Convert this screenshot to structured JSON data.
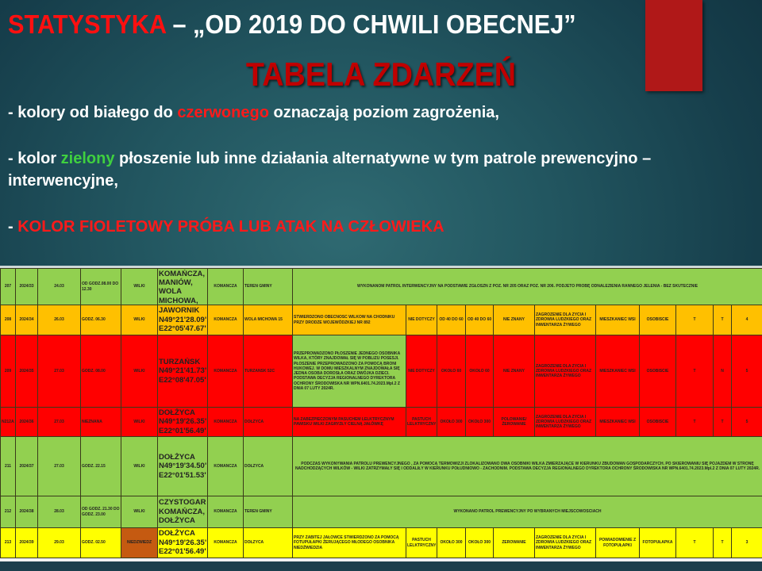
{
  "slide": {
    "title_red": "STATYSTYKA",
    "title_rest": " – „OD 2019 DO CHWILI OBECNEJ”",
    "subtitle": "TABELA ZDARZEŃ",
    "bullets": [
      {
        "pre": "- kolory od białego do ",
        "hl": "czerwonego",
        "post": " oznaczają poziom zagrożenia,"
      },
      {
        "pre": "- kolor ",
        "hl": "zielony",
        "post": " płoszenie lub inne działania alternatywne w tym patrole prewencyjno – interwencyjne,"
      },
      {
        "pre": "- ",
        "hl": "KOLOR FIOLETOWY PRÓBA LUB ATAK NA CZŁOWIEKA",
        "post": ""
      }
    ]
  },
  "colors": {
    "green": "#92d050",
    "orange": "#ffc000",
    "red": "#ff0000",
    "yellow": "#ffff00",
    "brown": "#c55a11",
    "title_red": "#c00000"
  },
  "table": {
    "rows": [
      {
        "bg": "#92d050",
        "span_desc": true,
        "cells": [
          "207",
          "2024/33",
          "24.03",
          "OD GODZ.08.00 DO 12.30",
          "WILKI",
          "KOMAŃCZA, MANIÓW, WOLA MICHOWA,",
          "KOMAŃCZA",
          "TEREN GMINY",
          "WYKONANOM PATROL INTERWENCYJNY NA PODSTAWIE ZGŁOSZŃ Z POZ. NR 205 ORAZ POZ. NR 206. PODJETO PRÓBĘ ODNALEZIENIA RANNEGO JELENIA - BEZ SKUTECZNIE"
        ]
      },
      {
        "bg": "#ffc000",
        "span_desc": false,
        "cells": [
          "208",
          "2024/34",
          "26.03",
          "GODZ. 06.30",
          "WILKI",
          "JAWORNIK N49°21'28.09\" E22°05'47.67\"",
          "KOMAŃCZA",
          "WOLA MICHOWA 15",
          "STWIERDZONO OBECNOŚĆ WILKÓW NA CHODNIKU PRZY DRODZE WOJEWÓDZKIEJ NR 892",
          "NIE DOTYCZY",
          "OD 40 DO 60",
          "OD 40 DO 60",
          "NIE ZNANY",
          "ZAGROŻENIE DLA ŻYCIA I ZDROWIA LUDZKIEGO ORAZ INWENTARZA ŻYWEGO",
          "MIESZKANIEC WSI",
          "OSOBIŚCIE",
          "T",
          "T",
          "4"
        ]
      },
      {
        "bg": "#ff0000",
        "span_desc": false,
        "desc_bg": "#92d050",
        "cells": [
          "209",
          "2024/35",
          "27.03",
          "GODZ. 08.00",
          "WILKI",
          "TURZAŃSK N49°21'41.73\" E22°08'47.05\"",
          "KOMAŃCZA",
          "TURZAŃSK 52C",
          "PRZEPROWADZONO PŁOSZENIE JEDNEGO OSOBNIKA WILKA, KTÓRY ZNAJDOWAŁ SIĘ W POBLIZU POSESJI. PŁOSZENIE PRZEPROWADZONO ZA POMOCĄ BRONI HUKOWEJ. W DOMU MIESZKALNYM ZNAJDOWAŁA SIĘ JEDNA OSOBA DOROSŁA ORAZ DWÓJKA DZIECI. PODSTAWA DECYZJA REGIONALNEGO DYREKTORA OCHRONY ŚRODOWISKA NR WPN.6401.74.2023.Mpl.2 Z DNIA 07 LUTY 2024R.",
          "NIE DOTYCZY",
          "OKOŁO 60",
          "OKOŁO 60",
          "NIE ZNANY",
          "ZAGROŻENIE DLA ŻYCIA I ZDROWIA LUDZKIEGO ORAZ INWENTARZA ŻYWEGO",
          "MIESZKANIEC WSI",
          "OSOBIŚCIE",
          "T",
          "N",
          "5"
        ]
      },
      {
        "bg": "#ff0000",
        "span_desc": false,
        "cells": [
          "N212A2",
          "2024/36",
          "27.03",
          "NIEZNANA",
          "WILKI",
          "DOŁŻYCA N49°19'26.35\" E22°01'56.49\"",
          "KOMAŃCZA",
          "DOŁŻYCA",
          "NA ZABEZPIECZONYM PASUCHEM LELKTRYCZNYM PAWISKU WILKI ZAGRYZŁY CIELNĄ JAŁÓWKĘ",
          "PASTUCH LELKTRYCZNY",
          "OKOŁO 300",
          "OKOŁO 300",
          "POLOWANIE/ŻEROWANIE",
          "ZAGROŻENIE DLA ŻYCIA I ZDROWIA LUDZKIEGO ORAZ INWENTARZA ŻYWEGO",
          "MIESZKANIEC WSI",
          "OSOBIŚCIE",
          "T",
          "T",
          "5"
        ]
      },
      {
        "bg": "#92d050",
        "span_desc": true,
        "cells": [
          "211",
          "2024/37",
          "27.03",
          "GODZ. 22.15",
          "WILKI",
          "DOŁŻYCA N49°19'34.50\" E22°01'51.53\"",
          "KOMAŃCZA",
          "DOŁŻYCA",
          "PODCZAS WYKONYWANIA PATROLU PREWENCYJNEGO , ZA POMOCĄ TERMOWIZJI ZLOKALIZOWANO DWA OSOBNIKI WILKA ZMIERZAJĄCE W KIERUNKU ZBUDOWAŃ GOSPODARCZYCH. PO SKIEROWANIU SIĘ POJAZDEM W STRONĘ NADCHODZĄCYCH WILKÓW - WILKI ZATRZYMAŁY SIĘ I ODDALIŁY W KIERUNKU POŁUDNIOWO - ZACHODNIM. PODSTAWA DECYZJA REGIONALNEGO DYREKTORA OCHRONY ŚRODOWISKA NR WPN.6401.74.2023.Mpl.2 Z DNIA 07 LUTY 2024R."
        ]
      },
      {
        "bg": "#92d050",
        "span_desc": true,
        "cells": [
          "212",
          "2024/38",
          "28.03",
          "OD GODZ. 21.30 DO GODZ. 23.00",
          "WILKI",
          "CZYSTOGARB, KOMAŃCZA, DOŁŻYCA",
          "KOMAŃCZA",
          "TEREN GMINY",
          "WYKONANO PATROL PREWENCYJNY PO WYBRANYCH MIEJSCOWOŚCIACH"
        ]
      },
      {
        "bg": "#ffff00",
        "span_desc": false,
        "species_bg": "#c55a11",
        "cells": [
          "213",
          "2024/39",
          "29.03",
          "GODZ. 02.50",
          "NIEDŹWIEDŹ",
          "DOŁŻYCA N49°19'26.35\" E22°01'56.49\"",
          "KOMAŃCZA",
          "DOŁŻYCA",
          "PRZY ZABITEJ JAŁÓWCE STWIERDZONO ZA POMOCĄ FOTUPUŁAPKI ŻERUJĄCEGO MŁODEGO OSOBNIKA NIEDŹWIEDZIA",
          "PASTUCH LELKTRYCZNY",
          "OKOŁO 300",
          "OKOŁO 300",
          "ŻEROWANIE",
          "ZAGROŻENIE DLA ŻYCIA I ZDROWIA LUDZKIEGO ORAZ INWENTARZA ŻYWEGO",
          "POWIADOMIENIE Z FOTOPUŁAPKI",
          "FOTOPUŁAPKA",
          "T",
          "T",
          "3"
        ]
      }
    ]
  }
}
